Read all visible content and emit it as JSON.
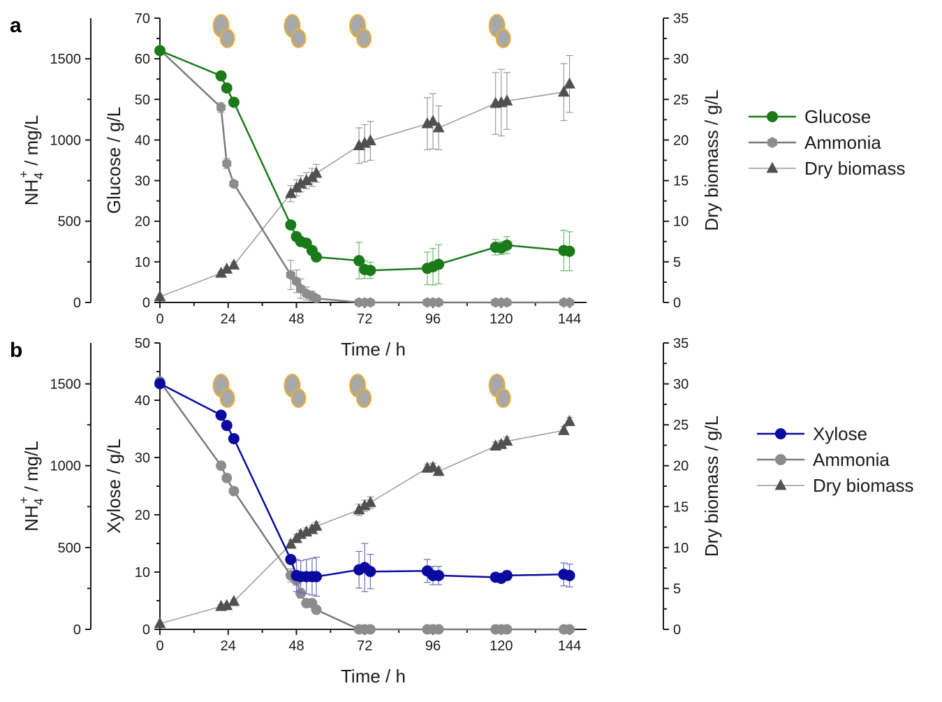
{
  "colors": {
    "glucose": "#1a7a1a",
    "xylose": "#0a0aa0",
    "ammonia": "#8c8c8c",
    "ammonia_line": "#7a7a7a",
    "biomass": "#505050",
    "biomass_line": "#9a9a9a",
    "glucose_err": "#6aba6a",
    "xylose_err": "#6a6ac0",
    "cell_fill": "#a8a8a8",
    "cell_edge": "#e8b030"
  },
  "chart_data": [
    {
      "panel_label": "a",
      "type": "line",
      "xlabel": "Time / h",
      "x_ticks": [
        "0",
        "24",
        "48",
        "72",
        "96",
        "120",
        "144"
      ],
      "xlim": [
        0,
        150
      ],
      "left_axis": {
        "label_main": "NH",
        "label_sub": "4",
        "label_sup": "+",
        "label_rest": " / mg/L",
        "ticks": [
          "0",
          "500",
          "1000",
          "1500"
        ],
        "ylim": [
          0,
          1750
        ]
      },
      "mid_axis": {
        "label": "Glucose / g/L",
        "ticks": [
          "0",
          "10",
          "20",
          "30",
          "40",
          "50",
          "60",
          "70"
        ],
        "ylim": [
          0,
          70
        ]
      },
      "right_axis": {
        "label": "Dry biomass / g/L",
        "ticks": [
          "0",
          "5",
          "10",
          "15",
          "20",
          "25",
          "30",
          "35"
        ],
        "ylim": [
          0,
          35
        ]
      },
      "feed_times": [
        22,
        47,
        70,
        119
      ],
      "legend": [
        "Glucose",
        "Ammonia",
        "Dry biomass"
      ],
      "series": [
        {
          "name": "Glucose",
          "axis": "mid",
          "marker": "circle",
          "color_key": "glucose",
          "x": [
            0,
            21.5,
            23.5,
            26,
            46,
            48,
            49.5,
            51.5,
            53.5,
            55,
            70,
            72,
            74,
            94,
            96,
            98,
            118,
            120,
            122,
            142,
            144
          ],
          "y": [
            62,
            55.8,
            52.8,
            49.3,
            19.1,
            16.2,
            15,
            14.6,
            12.8,
            11.2,
            10.3,
            8.1,
            7.9,
            8.4,
            8.8,
            9.4,
            13.6,
            13.4,
            14.1,
            12.8,
            12.6
          ],
          "err": [
            0,
            0,
            0,
            0,
            0,
            0,
            0,
            0,
            0,
            0,
            4.5,
            2.2,
            2.0,
            4.0,
            4.5,
            4.8,
            1.9,
            1.6,
            2.1,
            5.0,
            4.8
          ]
        },
        {
          "name": "Ammonia",
          "axis": "left",
          "marker": "hexagon",
          "color_key": "ammonia",
          "x": [
            0,
            21.5,
            23.5,
            26,
            46,
            48,
            49.5,
            51.5,
            53.5,
            55,
            70,
            72,
            74,
            94,
            96,
            98,
            118,
            120,
            122,
            142,
            144
          ],
          "y": [
            1555,
            1200,
            855,
            730,
            170,
            130,
            85,
            55,
            40,
            25,
            0,
            0,
            0,
            0,
            0,
            0,
            0,
            0,
            0,
            0,
            0
          ],
          "err": [
            0,
            30,
            30,
            20,
            90,
            70,
            60,
            40,
            30,
            20,
            0,
            0,
            0,
            0,
            0,
            0,
            0,
            0,
            0,
            0,
            0
          ]
        },
        {
          "name": "Dry biomass",
          "axis": "right",
          "marker": "triangle",
          "color_key": "biomass",
          "x": [
            0,
            21.5,
            23.5,
            26,
            46,
            48,
            49.5,
            51.5,
            53.5,
            55,
            70,
            72,
            74,
            94,
            96,
            98,
            118,
            120,
            122,
            142,
            144
          ],
          "y": [
            0.7,
            3.6,
            4.1,
            4.6,
            13.4,
            14.1,
            14.6,
            15.0,
            15.4,
            15.9,
            19.3,
            19.6,
            19.9,
            22.0,
            22.3,
            21.5,
            24.5,
            24.6,
            24.8,
            25.9,
            26.9
          ],
          "err": [
            0,
            0.2,
            0.2,
            0.3,
            1.0,
            1.0,
            1.0,
            1.0,
            1.1,
            1.1,
            2.2,
            2.3,
            2.4,
            3.2,
            3.4,
            2.7,
            3.8,
            4.1,
            3.5,
            3.5,
            3.5
          ]
        }
      ]
    },
    {
      "panel_label": "b",
      "type": "line",
      "xlabel": "Time / h",
      "x_ticks": [
        "0",
        "24",
        "48",
        "72",
        "96",
        "120",
        "144"
      ],
      "xlim": [
        0,
        150
      ],
      "left_axis": {
        "label_main": "NH",
        "label_sub": "4",
        "label_sup": "+",
        "label_rest": " / mg/L",
        "ticks": [
          "0",
          "500",
          "1000",
          "1500"
        ],
        "ylim": [
          0,
          1750
        ]
      },
      "mid_axis": {
        "label": "Xylose / g/L",
        "ticks": [
          "0",
          "10",
          "20",
          "30",
          "40",
          "50"
        ],
        "ylim": [
          0,
          50
        ]
      },
      "right_axis": {
        "label": "Dry biomass / g/L",
        "ticks": [
          "0",
          "5",
          "10",
          "15",
          "20",
          "25",
          "30",
          "35"
        ],
        "ylim": [
          0,
          35
        ]
      },
      "feed_times": [
        22,
        47,
        70,
        119
      ],
      "legend": [
        "Xylose",
        "Ammonia",
        "Dry biomass"
      ],
      "series": [
        {
          "name": "Xylose",
          "axis": "mid",
          "marker": "circle",
          "color_key": "xylose",
          "x": [
            0,
            21.5,
            23.5,
            26,
            46,
            48,
            49.5,
            51.5,
            53.5,
            55,
            70,
            72,
            74,
            94,
            96,
            98,
            118,
            120,
            122,
            142,
            144
          ],
          "y": [
            42.9,
            37.4,
            35.6,
            33.3,
            12.2,
            9.4,
            9.2,
            9.2,
            9.2,
            9.2,
            10.4,
            10.8,
            10.1,
            10.2,
            9.4,
            9.4,
            9.1,
            8.9,
            9.4,
            9.6,
            9.4
          ],
          "err": [
            0,
            0,
            0,
            0,
            0,
            2.8,
            2.8,
            3.0,
            3.2,
            3.4,
            3.2,
            4.2,
            3.0,
            2.0,
            1.6,
            1.6,
            0.7,
            0.7,
            0.8,
            2.0,
            2.0
          ],
          "err_width": [
            0,
            0,
            0,
            0,
            0,
            1,
            1,
            1,
            1,
            1,
            1,
            1,
            1,
            1,
            1,
            1,
            0,
            0,
            0,
            1,
            1
          ]
        },
        {
          "name": "Ammonia",
          "axis": "left",
          "marker": "circle",
          "color_key": "ammonia",
          "x": [
            0,
            21.5,
            23.5,
            26,
            46,
            48,
            49.5,
            51.5,
            53.5,
            55,
            70,
            72,
            74,
            94,
            96,
            98,
            118,
            120,
            122,
            142,
            144
          ],
          "y": [
            1515,
            1000,
            925,
            845,
            330,
            300,
            220,
            160,
            160,
            120,
            0,
            0,
            0,
            0,
            0,
            0,
            0,
            0,
            0,
            0,
            0
          ],
          "err": [
            0,
            20,
            20,
            20,
            40,
            30,
            30,
            20,
            20,
            20,
            0,
            0,
            0,
            0,
            0,
            0,
            0,
            0,
            0,
            0,
            0
          ]
        },
        {
          "name": "Dry biomass",
          "axis": "right",
          "marker": "triangle",
          "color_key": "biomass",
          "x": [
            0,
            21.5,
            23.5,
            26,
            46,
            48,
            49.5,
            51.5,
            53.5,
            55,
            70,
            72,
            74,
            94,
            96,
            98,
            118,
            120,
            122,
            142,
            144
          ],
          "y": [
            0.7,
            2.8,
            2.9,
            3.4,
            10.4,
            11.1,
            11.6,
            11.9,
            12.2,
            12.6,
            14.6,
            15.1,
            15.5,
            19.7,
            19.8,
            19.3,
            22.4,
            22.6,
            23.0,
            24.3,
            25.4
          ],
          "err": [
            0,
            0.2,
            0.2,
            0.2,
            0.5,
            0.5,
            0.5,
            0.5,
            0.5,
            0.5,
            0.7,
            0.7,
            0.7,
            0.5,
            0.5,
            0.5,
            0.5,
            0.5,
            0.5,
            0.5,
            0.5
          ]
        }
      ]
    }
  ]
}
